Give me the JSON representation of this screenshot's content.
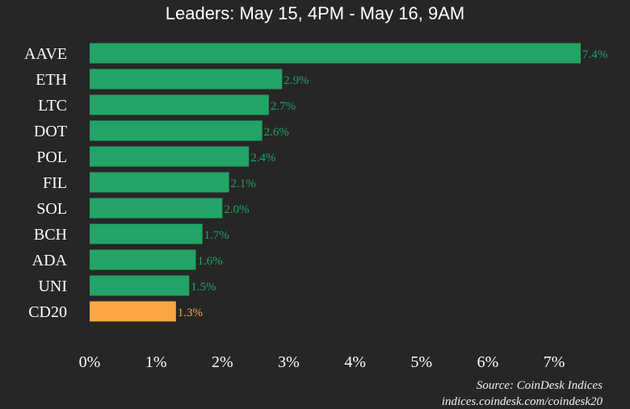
{
  "chart_data": {
    "type": "bar",
    "orientation": "horizontal",
    "title": "Leaders: May 15, 4PM - May 16, 9AM",
    "categories": [
      "AAVE",
      "ETH",
      "LTC",
      "DOT",
      "POL",
      "FIL",
      "SOL",
      "BCH",
      "ADA",
      "UNI",
      "CD20"
    ],
    "values": [
      7.4,
      2.9,
      2.7,
      2.6,
      2.4,
      2.1,
      2.0,
      1.7,
      1.6,
      1.5,
      1.3
    ],
    "value_labels": [
      "7.4%",
      "2.9%",
      "2.7%",
      "2.6%",
      "2.4%",
      "2.1%",
      "2.0%",
      "1.7%",
      "1.6%",
      "1.5%",
      "1.3%"
    ],
    "highlight_category": "CD20",
    "xlim": [
      0,
      7.4
    ],
    "x_ticks": [
      0,
      1,
      2,
      3,
      4,
      5,
      6,
      7
    ],
    "x_tick_labels": [
      "0%",
      "1%",
      "2%",
      "3%",
      "4%",
      "5%",
      "6%",
      "7%"
    ],
    "xlabel": "",
    "ylabel": "",
    "grid": false,
    "colors": {
      "bar": "#21a465",
      "highlight_bar": "#f9a541",
      "label": "#21a465",
      "highlight_label": "#f9a541",
      "background": "#262626",
      "text": "#ffffff"
    }
  },
  "source": {
    "line1": "Source: CoinDesk Indices",
    "line2": "indices.coindesk.com/coindesk20"
  }
}
